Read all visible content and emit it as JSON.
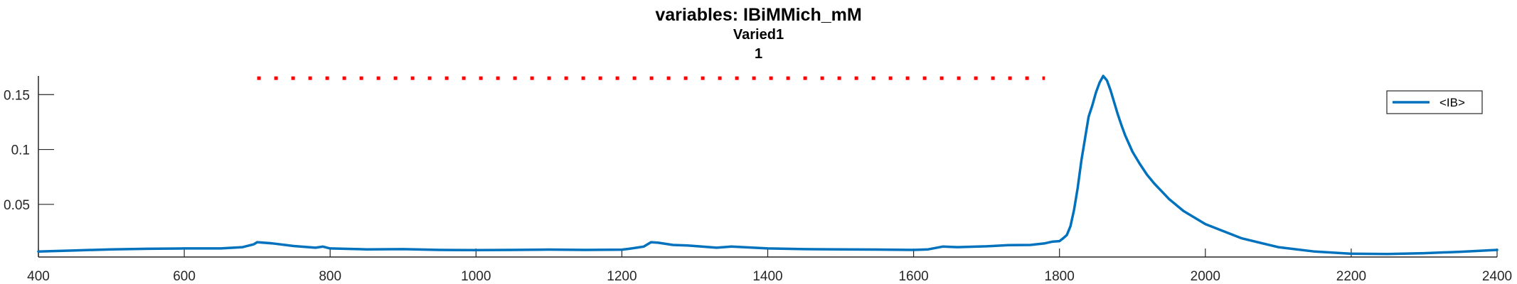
{
  "title": "variables: IBiMMich_mM",
  "subtitle": "Varied1",
  "subtitle2": "1",
  "chart_data": {
    "type": "line",
    "title": "variables: IBiMMich_mM",
    "subtitle": [
      "Varied1",
      "1"
    ],
    "xlabel": "",
    "ylabel": "",
    "xlim": [
      400,
      2400
    ],
    "ylim": [
      0.002,
      0.167
    ],
    "xticks": [
      400,
      600,
      800,
      1000,
      1200,
      1400,
      1600,
      1800,
      2000,
      2200,
      2400
    ],
    "yticks": [
      0.05,
      0.1,
      0.15
    ],
    "ytick_labels": [
      "0.05",
      "0.1",
      "0.15"
    ],
    "grid": false,
    "legend": {
      "position": "top-right",
      "entries": [
        "<IB>"
      ]
    },
    "series": [
      {
        "name": "<IB>",
        "color": "#0072BD",
        "style": "solid",
        "x": [
          400,
          450,
          500,
          550,
          600,
          650,
          680,
          695,
          700,
          720,
          750,
          780,
          790,
          800,
          850,
          900,
          950,
          1000,
          1050,
          1100,
          1150,
          1200,
          1210,
          1220,
          1230,
          1240,
          1250,
          1270,
          1290,
          1300,
          1330,
          1350,
          1400,
          1450,
          1500,
          1550,
          1600,
          1620,
          1640,
          1660,
          1700,
          1730,
          1760,
          1780,
          1790,
          1800,
          1805,
          1810,
          1815,
          1820,
          1825,
          1830,
          1835,
          1840,
          1845,
          1850,
          1855,
          1860,
          1865,
          1870,
          1875,
          1880,
          1885,
          1890,
          1900,
          1910,
          1920,
          1930,
          1940,
          1950,
          1970,
          2000,
          2050,
          2100,
          2150,
          2200,
          2250,
          2300,
          2350,
          2400
        ],
        "y": [
          0.007,
          0.008,
          0.009,
          0.0095,
          0.0098,
          0.0098,
          0.011,
          0.0135,
          0.0155,
          0.0145,
          0.012,
          0.0105,
          0.0115,
          0.0098,
          0.009,
          0.0092,
          0.0085,
          0.0083,
          0.0085,
          0.0088,
          0.0085,
          0.0087,
          0.0095,
          0.0105,
          0.0115,
          0.0155,
          0.015,
          0.013,
          0.0125,
          0.012,
          0.0105,
          0.0115,
          0.0098,
          0.0092,
          0.009,
          0.0088,
          0.0085,
          0.009,
          0.0115,
          0.011,
          0.0118,
          0.0128,
          0.013,
          0.0145,
          0.016,
          0.0165,
          0.019,
          0.022,
          0.03,
          0.045,
          0.065,
          0.09,
          0.11,
          0.13,
          0.14,
          0.152,
          0.161,
          0.167,
          0.163,
          0.154,
          0.143,
          0.132,
          0.122,
          0.113,
          0.098,
          0.087,
          0.077,
          0.069,
          0.062,
          0.055,
          0.044,
          0.032,
          0.019,
          0.011,
          0.007,
          0.005,
          0.0048,
          0.0055,
          0.0068,
          0.0085
        ]
      },
      {
        "name": "",
        "color": "#FF0000",
        "style": "dotted",
        "x": [
          700,
          1780
        ],
        "y": [
          0.165,
          0.165
        ]
      }
    ]
  }
}
